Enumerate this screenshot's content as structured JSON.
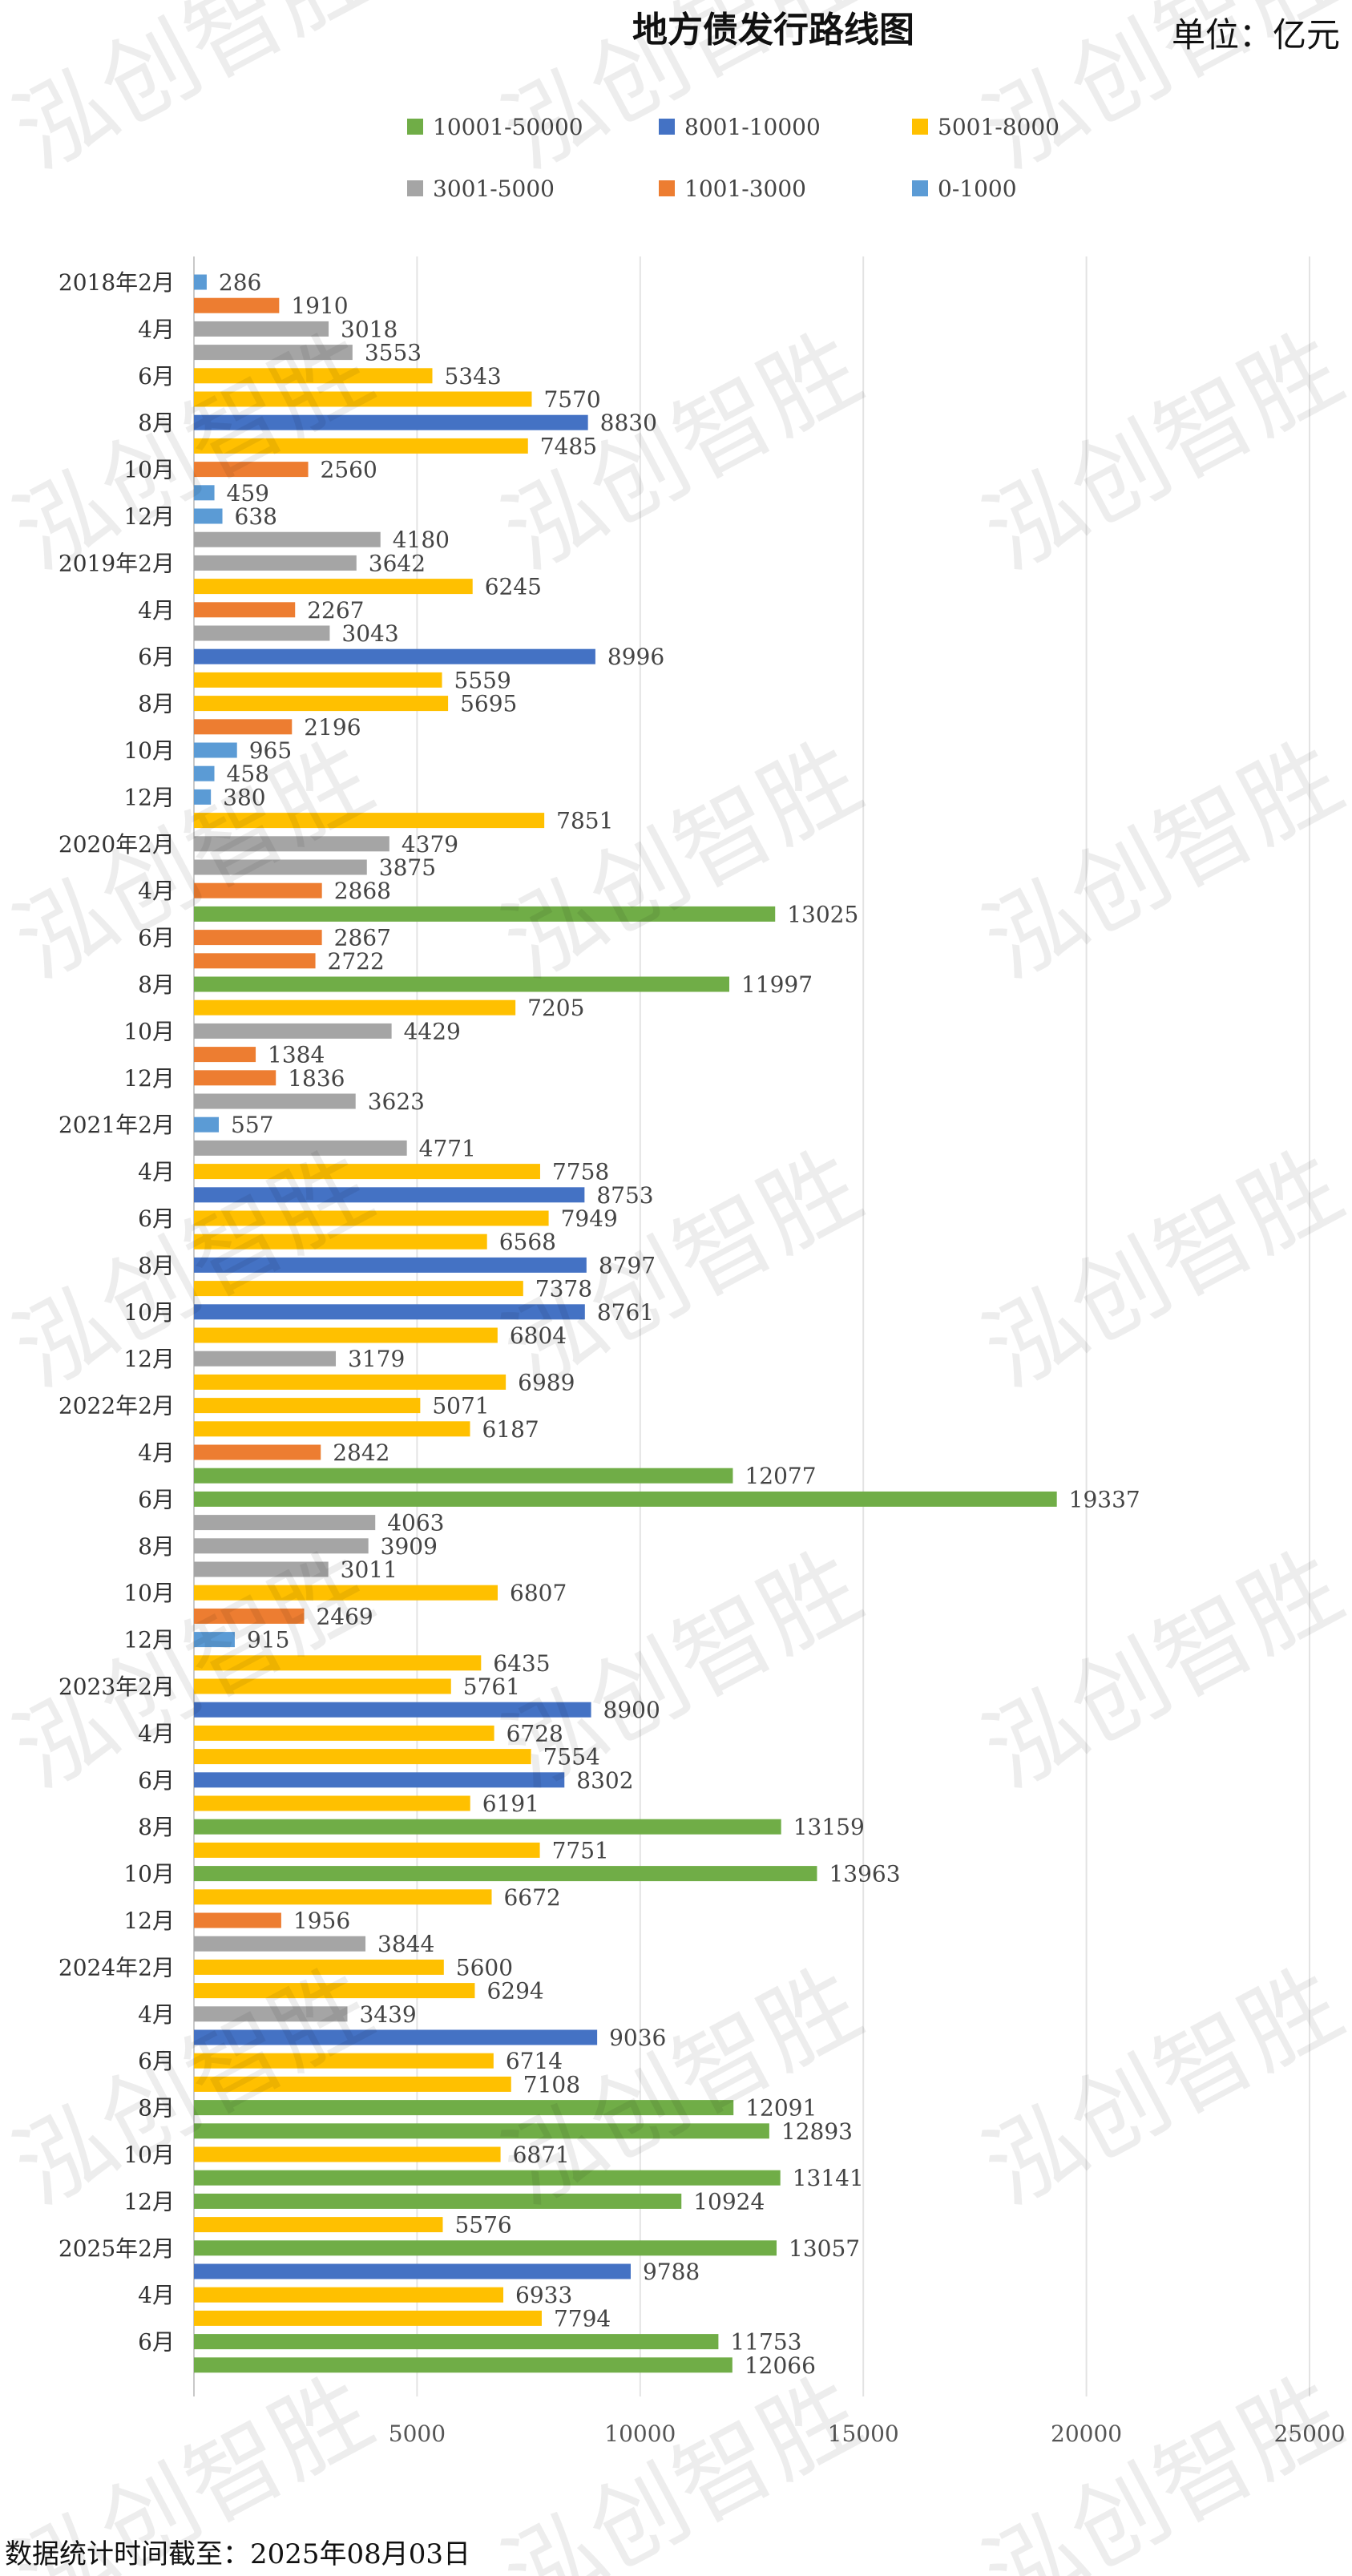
{
  "watermark": "泓创智胜",
  "footer": "数据统计时间截至：2025年08月03日",
  "chart_data": {
    "type": "bar",
    "orientation": "horizontal",
    "title": "地方债发行路线图",
    "unit": "单位：亿元",
    "xlim": [
      0,
      25000
    ],
    "xticks": [
      0,
      5000,
      10000,
      15000,
      20000,
      25000
    ],
    "xtick_labels": [
      "",
      "5000",
      "10000",
      "15000",
      "20000",
      "25000"
    ],
    "grid": true,
    "legend_position": "top",
    "legend": [
      {
        "key": "g",
        "label": "10001-50000",
        "color": "#70AD47"
      },
      {
        "key": "b",
        "label": "8001-10000",
        "color": "#4472C4"
      },
      {
        "key": "y",
        "label": "5001-8000",
        "color": "#FFC000"
      },
      {
        "key": "gr",
        "label": "3001-5000",
        "color": "#A5A5A5"
      },
      {
        "key": "o",
        "label": "1001-3000",
        "color": "#ED7D31"
      },
      {
        "key": "lb",
        "label": "0-1000",
        "color": "#5B9BD5"
      }
    ],
    "categories": [
      "2018年2月",
      "",
      "4月",
      "",
      "6月",
      "",
      "8月",
      "",
      "10月",
      "",
      "12月",
      "",
      "2019年2月",
      "",
      "4月",
      "",
      "6月",
      "",
      "8月",
      "",
      "10月",
      "",
      "12月",
      "",
      "2020年2月",
      "",
      "4月",
      "",
      "6月",
      "",
      "8月",
      "",
      "10月",
      "",
      "12月",
      "",
      "2021年2月",
      "",
      "4月",
      "",
      "6月",
      "",
      "8月",
      "",
      "10月",
      "",
      "12月",
      "",
      "2022年2月",
      "",
      "4月",
      "",
      "6月",
      "",
      "8月",
      "",
      "10月",
      "",
      "12月",
      "",
      "2023年2月",
      "",
      "4月",
      "",
      "6月",
      "",
      "8月",
      "",
      "10月",
      "",
      "12月",
      "",
      "2024年2月",
      "",
      "4月",
      "",
      "6月",
      "",
      "8月",
      "",
      "10月",
      "",
      "12月",
      "",
      "2025年2月",
      "",
      "4月",
      "",
      "6月",
      ""
    ],
    "values": [
      286,
      1910,
      3018,
      3553,
      5343,
      7570,
      8830,
      7485,
      2560,
      459,
      638,
      4180,
      3642,
      6245,
      2267,
      3043,
      8996,
      5559,
      5695,
      2196,
      965,
      458,
      380,
      7851,
      4379,
      3875,
      2868,
      13025,
      2867,
      2722,
      11997,
      7205,
      4429,
      1384,
      1836,
      3623,
      557,
      4771,
      7758,
      8753,
      7949,
      6568,
      8797,
      7378,
      8761,
      6804,
      3179,
      6989,
      5071,
      6187,
      2842,
      12077,
      19337,
      4063,
      3909,
      3011,
      6807,
      2469,
      915,
      6435,
      5761,
      8900,
      6728,
      7554,
      8302,
      6191,
      13159,
      7751,
      13963,
      6672,
      1956,
      3844,
      5600,
      6294,
      3439,
      9036,
      6714,
      7108,
      12091,
      12893,
      6871,
      13141,
      10924,
      5576,
      13057,
      9788,
      6933,
      7794,
      11753,
      12066
    ]
  }
}
